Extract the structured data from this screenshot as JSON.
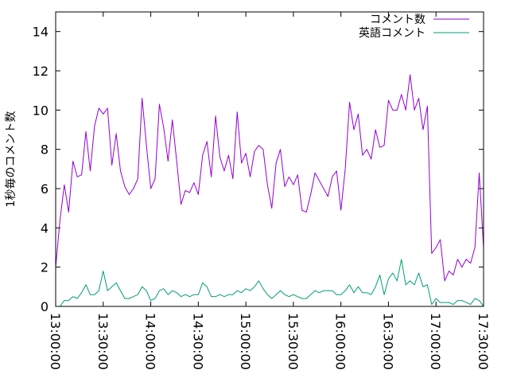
{
  "chart_data": {
    "type": "line",
    "ylabel": "1秒毎のコメント数",
    "xlabel": "",
    "ylim": [
      0,
      15
    ],
    "yticks": [
      0,
      2,
      4,
      6,
      8,
      10,
      12,
      14
    ],
    "xlim": [
      "13:00:00",
      "17:30:00"
    ],
    "xticks": [
      "13:00:00",
      "13:30:00",
      "14:00:00",
      "14:30:00",
      "15:00:00",
      "15:30:00",
      "16:00:00",
      "16:30:00",
      "17:00:00",
      "17:30:00"
    ],
    "grid": false,
    "legend_position": "top-right",
    "series": [
      {
        "name": "コメント数",
        "color": "#9400d3",
        "values": [
          2.0,
          4.4,
          6.2,
          4.8,
          7.4,
          6.6,
          6.7,
          8.9,
          6.9,
          9.2,
          10.1,
          9.8,
          10.1,
          7.2,
          8.8,
          6.9,
          6.1,
          5.7,
          6.0,
          6.5,
          10.6,
          8.2,
          6.0,
          6.5,
          10.3,
          9.1,
          7.4,
          9.5,
          7.4,
          5.2,
          5.9,
          5.8,
          6.3,
          5.7,
          7.7,
          8.4,
          6.6,
          9.7,
          7.6,
          6.9,
          7.7,
          6.5,
          9.9,
          7.3,
          7.8,
          6.6,
          7.9,
          8.2,
          8.0,
          6.2,
          5.0,
          7.3,
          8.0,
          6.1,
          6.6,
          6.2,
          6.7,
          4.9,
          4.8,
          5.7,
          6.8,
          6.4,
          6.0,
          5.6,
          6.6,
          6.9,
          4.9,
          7.0,
          10.4,
          9.0,
          9.8,
          7.7,
          8.0,
          7.5,
          9.0,
          8.1,
          8.2,
          10.5,
          10.0,
          10.0,
          10.8,
          10.0,
          11.8,
          10.0,
          10.6,
          9.0,
          10.2,
          2.7,
          3.0,
          3.4,
          1.3,
          1.8,
          1.6,
          2.4,
          2.0,
          2.4,
          2.2,
          3.0,
          6.8,
          3.0
        ]
      },
      {
        "name": "英語コメント",
        "color": "#009e73",
        "values": [
          0.0,
          0.0,
          0.3,
          0.3,
          0.5,
          0.4,
          0.7,
          1.1,
          0.6,
          0.6,
          0.8,
          1.8,
          0.8,
          1.0,
          1.2,
          0.8,
          0.4,
          0.4,
          0.5,
          0.6,
          1.0,
          0.8,
          0.3,
          0.4,
          0.8,
          0.9,
          0.6,
          0.8,
          0.7,
          0.5,
          0.6,
          0.5,
          0.6,
          0.6,
          1.2,
          1.0,
          0.5,
          0.5,
          0.6,
          0.5,
          0.6,
          0.6,
          0.8,
          0.7,
          0.9,
          0.8,
          1.0,
          1.3,
          0.9,
          0.6,
          0.4,
          0.6,
          0.8,
          0.6,
          0.5,
          0.6,
          0.5,
          0.4,
          0.4,
          0.6,
          0.8,
          0.7,
          0.8,
          0.8,
          0.8,
          0.6,
          0.6,
          0.8,
          1.1,
          0.7,
          1.0,
          0.7,
          0.7,
          0.6,
          1.0,
          1.6,
          0.6,
          1.4,
          1.7,
          1.3,
          2.4,
          1.1,
          1.3,
          1.1,
          1.7,
          1.0,
          1.1,
          0.1,
          0.4,
          0.2,
          0.2,
          0.2,
          0.1,
          0.3,
          0.3,
          0.2,
          0.1,
          0.4,
          0.3,
          0.0
        ]
      }
    ]
  }
}
